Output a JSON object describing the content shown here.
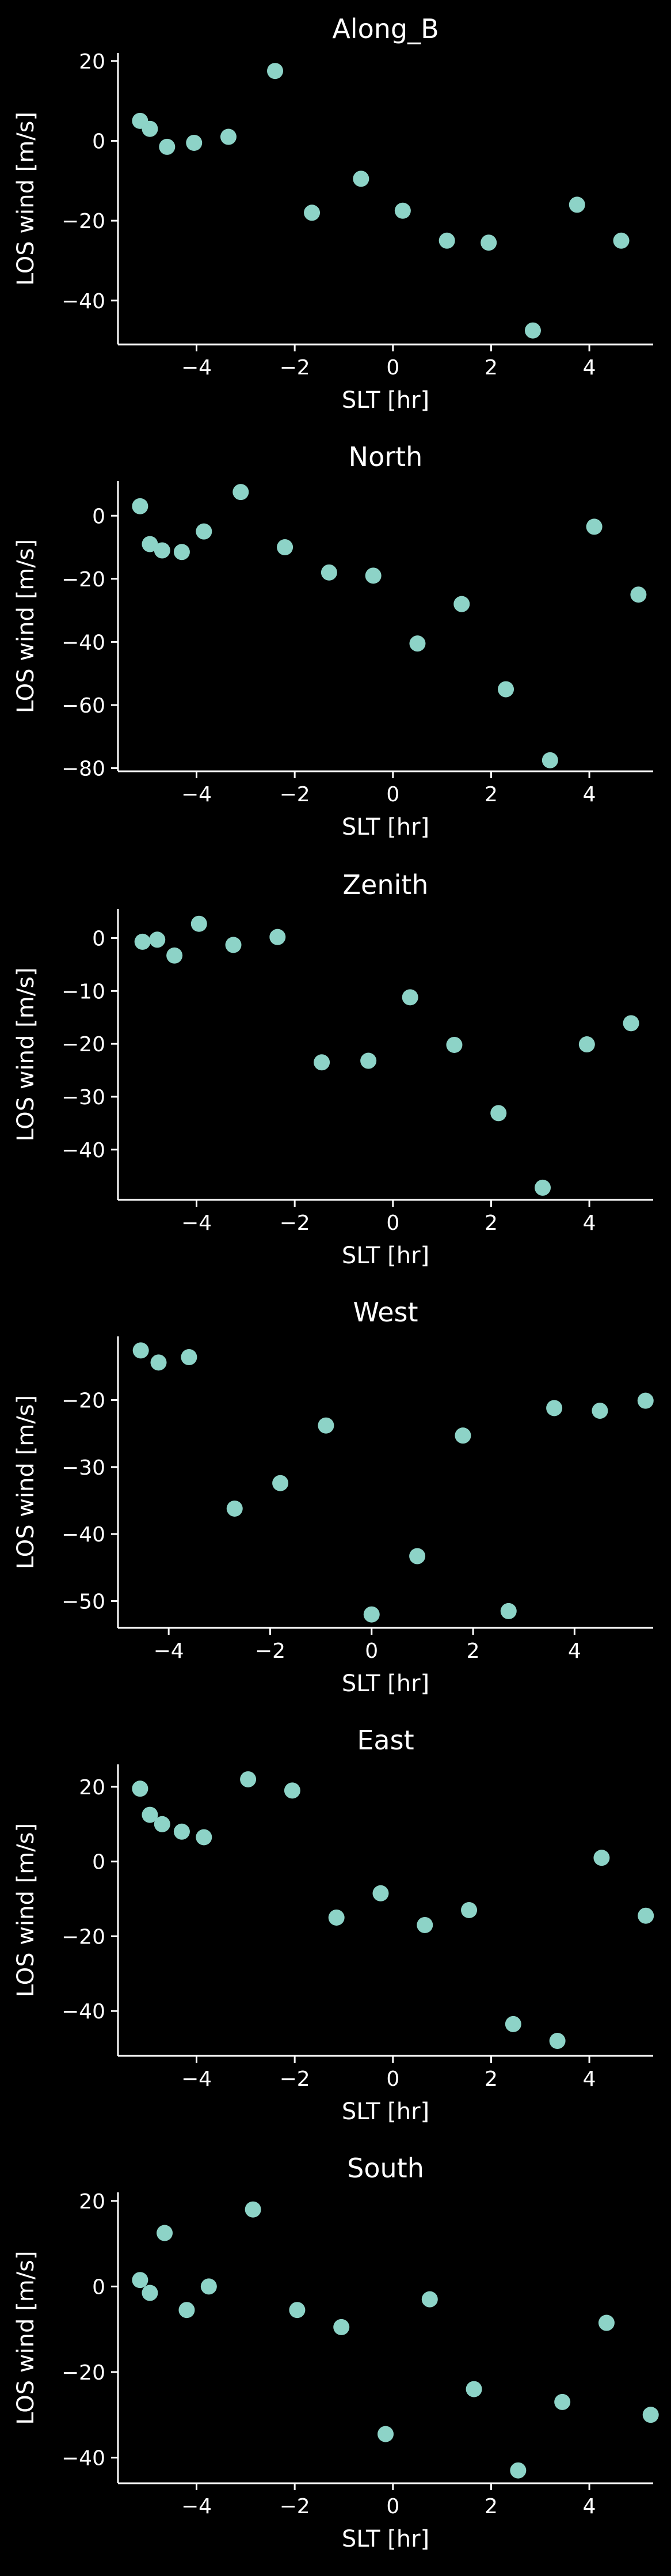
{
  "chart_data": [
    {
      "type": "scatter",
      "title": "Along_B",
      "xlabel": "SLT [hr]",
      "ylabel": "LOS wind [m/s]",
      "xlim": [
        -5.6,
        5.3
      ],
      "ylim": [
        -51,
        22
      ],
      "xticks": [
        -4,
        -2,
        0,
        2,
        4
      ],
      "yticks": [
        -40,
        -20,
        0,
        20
      ],
      "xtick_labels": [
        "−4",
        "−2",
        "0",
        "2",
        "4"
      ],
      "ytick_labels": [
        "−40",
        "−20",
        "0",
        "20"
      ],
      "grid": false,
      "color": "#8dd3c7",
      "x": [
        -5.15,
        -4.95,
        -4.6,
        -4.05,
        -3.35,
        -2.4,
        -1.65,
        -0.65,
        0.2,
        1.1,
        1.95,
        2.85,
        3.75,
        4.65
      ],
      "y": [
        5,
        3,
        -1.5,
        -0.5,
        1,
        17.5,
        -18,
        -9.5,
        -17.5,
        -25,
        -25.5,
        -47.5,
        -16,
        -25
      ]
    },
    {
      "type": "scatter",
      "title": "North",
      "xlabel": "SLT [hr]",
      "ylabel": "LOS wind [m/s]",
      "xlim": [
        -5.6,
        5.3
      ],
      "ylim": [
        -81,
        11
      ],
      "xticks": [
        -4,
        -2,
        0,
        2,
        4
      ],
      "yticks": [
        -80,
        -60,
        -40,
        -20,
        0
      ],
      "xtick_labels": [
        "−4",
        "−2",
        "0",
        "2",
        "4"
      ],
      "ytick_labels": [
        "−80",
        "−60",
        "−40",
        "−20",
        "0"
      ],
      "grid": false,
      "color": "#8dd3c7",
      "x": [
        -5.15,
        -4.95,
        -4.7,
        -4.3,
        -3.85,
        -3.1,
        -2.2,
        -1.3,
        -0.4,
        0.5,
        1.4,
        2.3,
        3.2,
        4.1,
        5.0
      ],
      "y": [
        3,
        -9,
        -11,
        -11.5,
        -5,
        7.5,
        -10,
        -18,
        -19,
        -40.5,
        -28,
        -55,
        -77.5,
        -3.5,
        -25
      ]
    },
    {
      "type": "scatter",
      "title": "Zenith",
      "xlabel": "SLT [hr]",
      "ylabel": "LOS wind [m/s]",
      "xlim": [
        -5.6,
        5.3
      ],
      "ylim": [
        -49.5,
        5.5
      ],
      "xticks": [
        -4,
        -2,
        0,
        2,
        4
      ],
      "yticks": [
        -40,
        -30,
        -20,
        -10,
        0
      ],
      "xtick_labels": [
        "−4",
        "−2",
        "0",
        "2",
        "4"
      ],
      "ytick_labels": [
        "−40",
        "−30",
        "−20",
        "−10",
        "0"
      ],
      "grid": false,
      "color": "#8dd3c7",
      "x": [
        -5.1,
        -4.8,
        -4.45,
        -3.95,
        -3.25,
        -2.35,
        -1.45,
        -0.5,
        0.35,
        1.25,
        2.15,
        3.05,
        3.95,
        4.85
      ],
      "y": [
        -0.7,
        -0.3,
        -3.3,
        2.7,
        -1.3,
        0.2,
        -23.5,
        -23.2,
        -11.2,
        -20.2,
        -33.1,
        -47.2,
        -20.1,
        -16.1
      ]
    },
    {
      "type": "scatter",
      "title": "West",
      "xlabel": "SLT [hr]",
      "ylabel": "LOS wind [m/s]",
      "xlim": [
        -5.0,
        5.55
      ],
      "ylim": [
        -54,
        -10.5
      ],
      "xticks": [
        -4,
        -2,
        0,
        2,
        4
      ],
      "yticks": [
        -50,
        -40,
        -30,
        -20
      ],
      "xtick_labels": [
        "−4",
        "−2",
        "0",
        "2",
        "4"
      ],
      "ytick_labels": [
        "−50",
        "−40",
        "−30",
        "−20"
      ],
      "grid": false,
      "color": "#8dd3c7",
      "x": [
        -4.55,
        -4.2,
        -3.6,
        -2.7,
        -1.8,
        -0.9,
        0.0,
        0.9,
        1.8,
        2.7,
        3.6,
        4.5,
        5.4
      ],
      "y": [
        -12.6,
        -14.4,
        -13.6,
        -36.2,
        -32.4,
        -23.8,
        -52.0,
        -43.3,
        -25.3,
        -51.5,
        -21.2,
        -21.6,
        -20.1
      ]
    },
    {
      "type": "scatter",
      "title": "East",
      "xlabel": "SLT [hr]",
      "ylabel": "LOS wind [m/s]",
      "xlim": [
        -5.6,
        5.3
      ],
      "ylim": [
        -52,
        26
      ],
      "xticks": [
        -4,
        -2,
        0,
        2,
        4
      ],
      "yticks": [
        -40,
        -20,
        0,
        20
      ],
      "xtick_labels": [
        "−4",
        "−2",
        "0",
        "2",
        "4"
      ],
      "ytick_labels": [
        "−40",
        "−20",
        "0",
        "20"
      ],
      "grid": false,
      "color": "#8dd3c7",
      "x": [
        -5.15,
        -4.95,
        -4.7,
        -4.3,
        -3.85,
        -2.95,
        -2.05,
        -1.15,
        -0.25,
        0.65,
        1.55,
        2.45,
        3.35,
        4.25,
        5.15
      ],
      "y": [
        19.5,
        12.5,
        10,
        8,
        6.5,
        22,
        19,
        -15,
        -8.5,
        -17,
        -13,
        -43.5,
        -48,
        1,
        -14.5
      ]
    },
    {
      "type": "scatter",
      "title": "South",
      "xlabel": "SLT [hr]",
      "ylabel": "LOS wind [m/s]",
      "xlim": [
        -5.6,
        5.3
      ],
      "ylim": [
        -46,
        22
      ],
      "xticks": [
        -4,
        -2,
        0,
        2,
        4
      ],
      "yticks": [
        -40,
        -20,
        0,
        20
      ],
      "xtick_labels": [
        "−4",
        "−2",
        "0",
        "2",
        "4"
      ],
      "ytick_labels": [
        "−40",
        "−20",
        "0",
        "20"
      ],
      "grid": false,
      "color": "#8dd3c7",
      "x": [
        -5.15,
        -4.95,
        -4.65,
        -4.2,
        -3.75,
        -2.85,
        -1.95,
        -1.05,
        -0.15,
        0.75,
        1.65,
        2.55,
        3.45,
        4.35,
        5.25
      ],
      "y": [
        1.5,
        -1.5,
        12.5,
        -5.5,
        0,
        18,
        -5.5,
        -9.5,
        -34.5,
        -3,
        -24,
        -43,
        -27,
        -8.5,
        -30
      ]
    }
  ]
}
